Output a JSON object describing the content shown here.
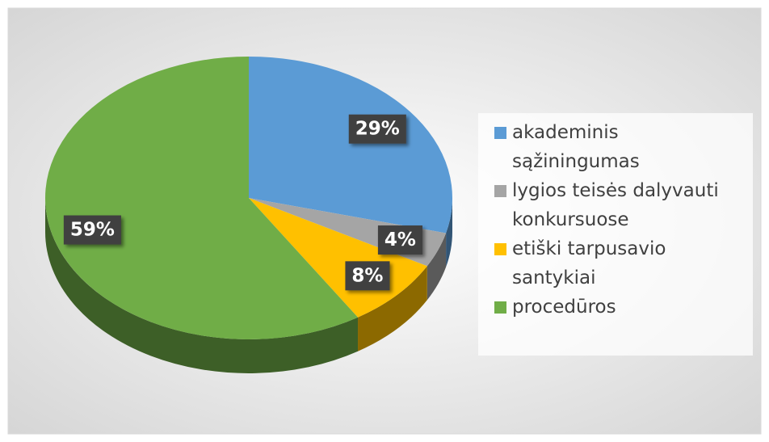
{
  "chart_data": {
    "type": "pie",
    "categories": [
      "akademinis sąžiningumas",
      "lygios teisės dalyvauti konkursuose",
      "etiški tarpusavio santykiai",
      "procedūros"
    ],
    "values": [
      29,
      4,
      8,
      59
    ],
    "value_labels": [
      "29%",
      "4%",
      "8%",
      "59%"
    ],
    "colors": [
      "#5b9bd5",
      "#a5a5a5",
      "#ffc000",
      "#70ad47"
    ],
    "legend": "right"
  }
}
